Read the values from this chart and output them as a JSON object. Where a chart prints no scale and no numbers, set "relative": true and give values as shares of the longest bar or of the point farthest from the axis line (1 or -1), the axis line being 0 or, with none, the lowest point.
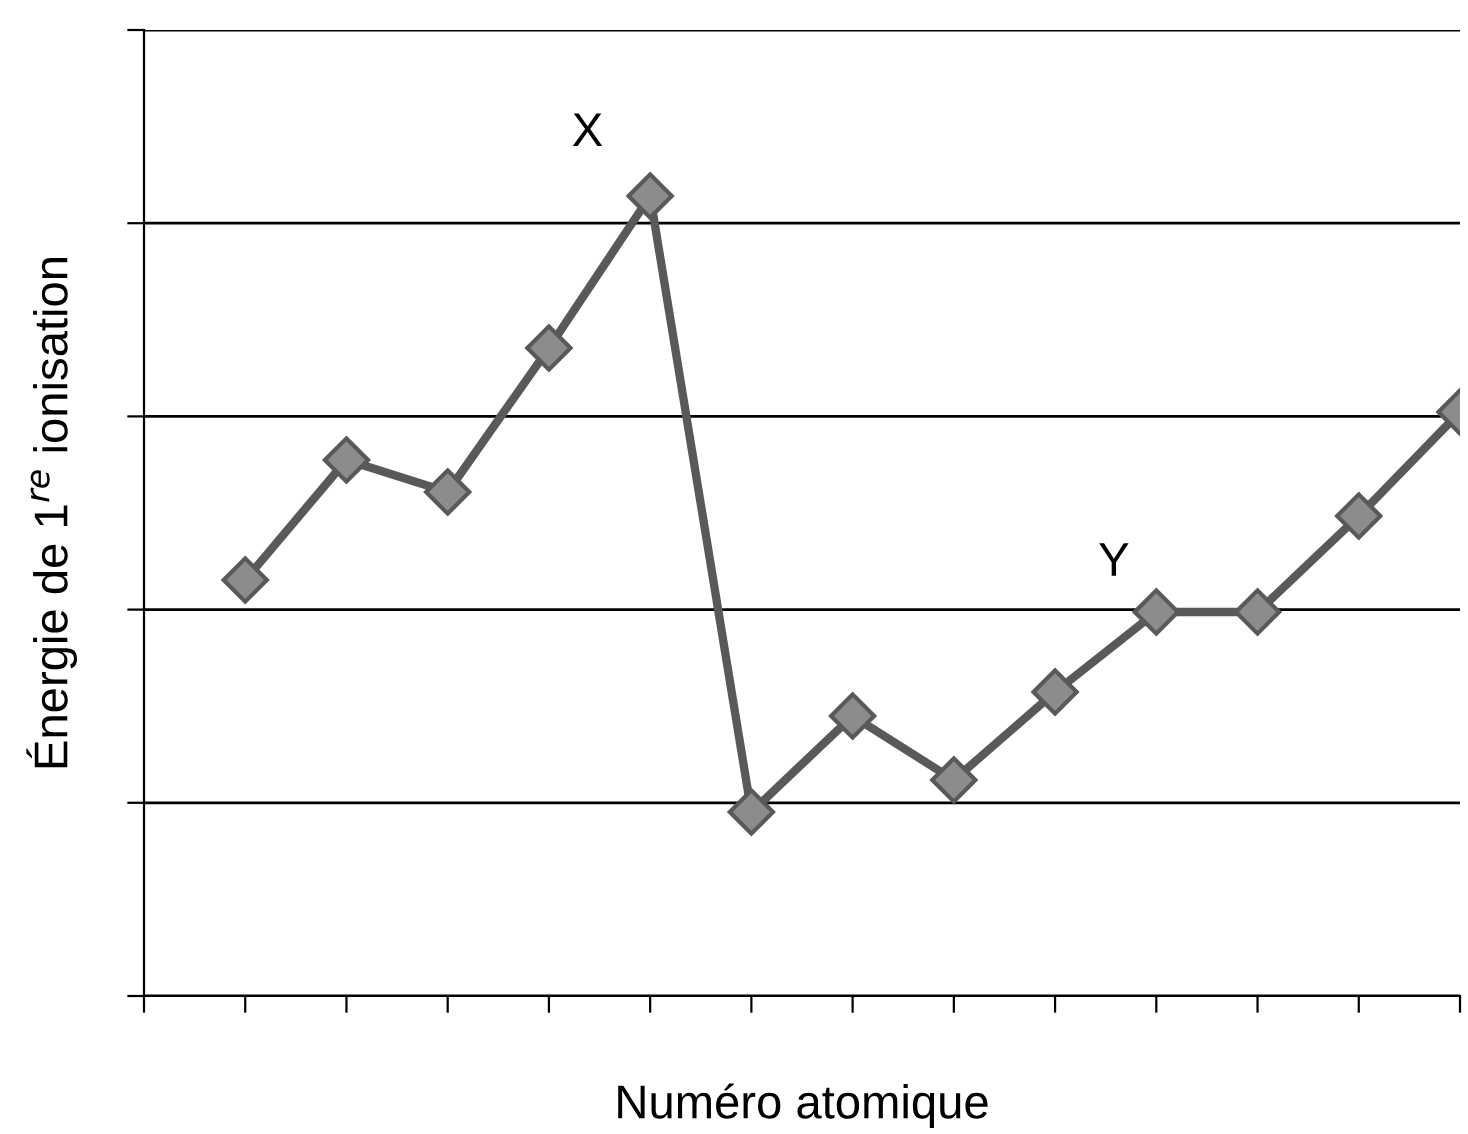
{
  "chart_data": {
    "type": "line",
    "relative": true,
    "xlabel": "Numéro atomique",
    "ylabel": "Énergie de 1$^{re}$ ionisation",
    "categories": [
      null,
      null,
      null,
      null,
      null,
      null,
      null,
      null,
      null,
      null,
      null,
      null,
      null
    ],
    "series": [
      {
        "color": "#595959",
        "values": [
          0.52,
          0.67,
          0.63,
          0.81,
          1.0,
          0.23,
          0.35,
          0.27,
          0.38,
          0.48,
          0.48,
          0.6,
          0.73
        ]
      }
    ],
    "annotations": [
      "X",
      "Y"
    ],
    "grid": "y",
    "legend": false,
    "marker": "diamond",
    "line_style": "solid"
  }
}
